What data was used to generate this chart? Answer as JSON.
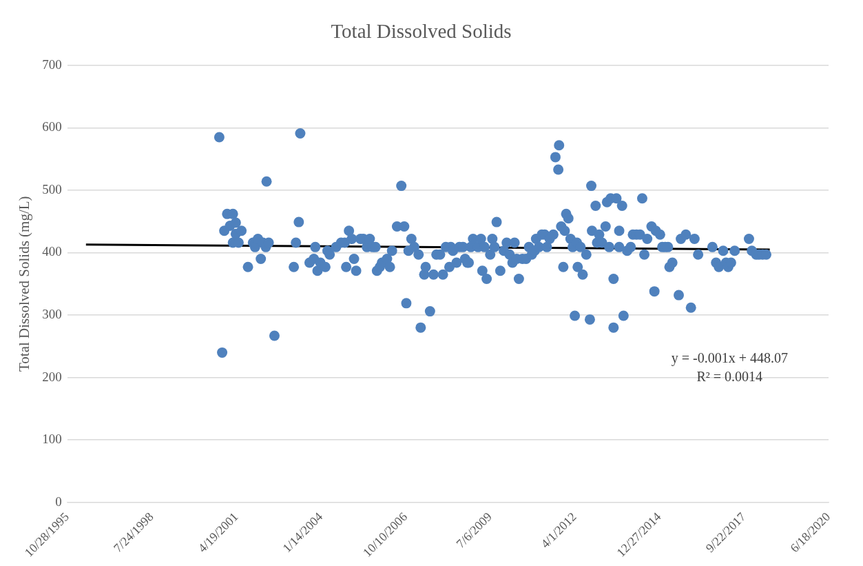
{
  "chart_data": {
    "type": "scatter",
    "title": "Total Dissolved Solids",
    "ylabel": "Total Dissolved Solids (mg/L)",
    "annotations": [
      "y = -0.001x + 448.07",
      "R² = 0.0014"
    ],
    "xlim": [
      "1995-10-28",
      "2020-06-18"
    ],
    "xticks": [
      {
        "value": "1995-10-28",
        "label": "10/28/1995"
      },
      {
        "value": "1998-07-24",
        "label": "7/24/1998"
      },
      {
        "value": "2001-04-19",
        "label": "4/19/2001"
      },
      {
        "value": "2004-01-14",
        "label": "1/14/2004"
      },
      {
        "value": "2006-10-10",
        "label": "10/10/2006"
      },
      {
        "value": "2009-07-06",
        "label": "7/6/2009"
      },
      {
        "value": "2012-04-01",
        "label": "4/1/2012"
      },
      {
        "value": "2014-12-27",
        "label": "12/27/2014"
      },
      {
        "value": "2017-09-22",
        "label": "9/22/2017"
      },
      {
        "value": "2020-06-18",
        "label": "6/18/2020"
      }
    ],
    "ylim": [
      0,
      700
    ],
    "yticks": [
      0,
      100,
      200,
      300,
      400,
      500,
      600,
      700
    ],
    "grid": "y",
    "legend": false,
    "marker": "circle",
    "line_style": "solid",
    "series": [
      {
        "type": "scatter",
        "color": "#4f81bd",
        "x": [
          "2000-09-28",
          "2000-11-01",
          "2000-11-26",
          "2000-12-30",
          "2001-02-02",
          "2001-03-08",
          "2001-03-08",
          "2001-04-11",
          "2001-04-11",
          "2001-05-14",
          "2001-06-17",
          "2001-09-02",
          "2001-10-31",
          "2001-11-25",
          "2001-12-29",
          "2002-02-01",
          "2002-02-26",
          "2002-04-01",
          "2002-04-10",
          "2002-05-05",
          "2002-07-12",
          "2003-02-26",
          "2003-03-23",
          "2003-04-26",
          "2003-05-13",
          "2003-08-31",
          "2003-10-21",
          "2003-11-07",
          "2003-12-03",
          "2004-01-06",
          "2004-03-05",
          "2004-03-30",
          "2004-04-25",
          "2004-07-10",
          "2004-09-07",
          "2004-10-20",
          "2004-11-06",
          "2004-12-09",
          "2005-01-12",
          "2005-02-07",
          "2005-03-04",
          "2005-04-24",
          "2005-05-28",
          "2005-07-09",
          "2005-08-12",
          "2005-09-15",
          "2005-10-19",
          "2005-11-05",
          "2005-12-09",
          "2006-01-03",
          "2006-03-04",
          "2006-04-07",
          "2006-05-02",
          "2006-06-30",
          "2006-08-20",
          "2006-09-23",
          "2006-10-18",
          "2006-11-13",
          "2006-12-17",
          "2007-01-20",
          "2007-03-12",
          "2007-04-06",
          "2007-05-18",
          "2007-06-04",
          "2007-07-25",
          "2007-09-05",
          "2007-10-09",
          "2007-11-21",
          "2007-12-25",
          "2008-01-28",
          "2008-03-10",
          "2008-03-27",
          "2008-04-21",
          "2008-06-03",
          "2008-07-07",
          "2008-08-18",
          "2008-09-12",
          "2008-10-08",
          "2008-10-25",
          "2008-11-19",
          "2008-12-15",
          "2009-02-12",
          "2009-03-18",
          "2009-04-04",
          "2009-04-29",
          "2009-05-25",
          "2009-07-06",
          "2009-07-31",
          "2009-08-26",
          "2009-09-20",
          "2009-11-02",
          "2009-12-14",
          "2010-01-17",
          "2010-02-20",
          "2010-03-26",
          "2010-04-20",
          "2010-05-15",
          "2010-06-10",
          "2010-07-22",
          "2010-09-03",
          "2010-10-07",
          "2010-11-10",
          "2010-12-13",
          "2010-12-30",
          "2011-02-02",
          "2011-03-08",
          "2011-04-11",
          "2011-05-07",
          "2011-06-09",
          "2011-07-22",
          "2011-08-16",
          "2011-09-19",
          "2011-09-28",
          "2011-10-23",
          "2011-11-17",
          "2011-12-04",
          "2011-12-21",
          "2012-01-16",
          "2012-02-10",
          "2012-03-07",
          "2012-04-01",
          "2012-04-26",
          "2012-05-05",
          "2012-06-08",
          "2012-07-03",
          "2012-08-15",
          "2012-09-26",
          "2012-10-13",
          "2012-10-21",
          "2012-12-03",
          "2012-12-20",
          "2013-01-14",
          "2013-02-17",
          "2013-03-31",
          "2013-04-17",
          "2013-05-13",
          "2013-05-30",
          "2013-07-03",
          "2013-07-03",
          "2013-08-06",
          "2013-09-08",
          "2013-09-08",
          "2013-10-12",
          "2013-10-29",
          "2013-12-11",
          "2014-01-22",
          "2014-02-17",
          "2014-03-31",
          "2014-05-12",
          "2014-06-07",
          "2014-07-02",
          "2014-08-05",
          "2014-09-25",
          "2014-10-29",
          "2014-11-15",
          "2015-01-04",
          "2015-01-30",
          "2015-03-05",
          "2015-04-08",
          "2015-04-25",
          "2015-05-29",
          "2015-08-13",
          "2015-09-07",
          "2015-11-05",
          "2016-01-04",
          "2016-02-15",
          "2016-03-29",
          "2016-09-14",
          "2016-10-27",
          "2016-11-29",
          "2017-01-19",
          "2017-02-22",
          "2017-03-20",
          "2017-04-22",
          "2017-06-04",
          "2017-11-20",
          "2017-12-24",
          "2018-02-13",
          "2018-03-19",
          "2018-04-30",
          "2018-06-12"
        ],
        "values": [
          585,
          240,
          435,
          462,
          443,
          462,
          416,
          448,
          430,
          416,
          435,
          377,
          416,
          409,
          422,
          390,
          416,
          409,
          514,
          416,
          267,
          377,
          416,
          449,
          591,
          384,
          390,
          409,
          371,
          384,
          377,
          403,
          397,
          409,
          416,
          416,
          377,
          435,
          422,
          390,
          371,
          422,
          422,
          409,
          422,
          409,
          409,
          371,
          377,
          384,
          390,
          377,
          403,
          442,
          507,
          442,
          319,
          403,
          422,
          409,
          397,
          280,
          365,
          377,
          306,
          365,
          397,
          397,
          365,
          409,
          377,
          409,
          403,
          384,
          409,
          409,
          390,
          384,
          384,
          409,
          422,
          409,
          422,
          371,
          409,
          358,
          397,
          422,
          409,
          449,
          371,
          403,
          416,
          397,
          384,
          416,
          390,
          358,
          390,
          390,
          409,
          397,
          403,
          422,
          409,
          429,
          429,
          409,
          422,
          429,
          553,
          533,
          572,
          442,
          377,
          435,
          462,
          455,
          422,
          409,
          299,
          416,
          377,
          409,
          365,
          397,
          293,
          507,
          435,
          475,
          416,
          429,
          416,
          442,
          481,
          409,
          487,
          280,
          358,
          487,
          409,
          435,
          475,
          299,
          403,
          409,
          429,
          429,
          429,
          487,
          397,
          422,
          442,
          338,
          435,
          429,
          409,
          409,
          409,
          377,
          384,
          332,
          422,
          429,
          312,
          422,
          397,
          409,
          384,
          377,
          403,
          384,
          377,
          384,
          403,
          422,
          403,
          397,
          397,
          397,
          397
        ]
      },
      {
        "type": "line",
        "color": "#000000",
        "marker": "none",
        "x": [
          "1996-06-05",
          "2018-07-24"
        ],
        "values": [
          413,
          405
        ]
      }
    ]
  }
}
